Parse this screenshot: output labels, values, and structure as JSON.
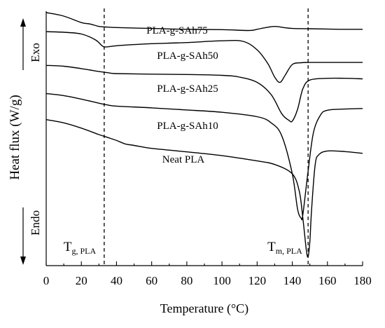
{
  "chart_data": {
    "type": "line",
    "xlabel": "Temperature (°C)",
    "ylabel": "Heat flux (W/g)",
    "xlim": [
      0,
      180
    ],
    "xticks": [
      0,
      20,
      40,
      60,
      80,
      100,
      120,
      140,
      160,
      180
    ],
    "grid": false,
    "legend": "none",
    "direction_labels": {
      "up": "Exo",
      "down": "Endo"
    },
    "reference_lines": [
      {
        "name": "tg",
        "x": 33,
        "main": "T",
        "sub": "g, PLA"
      },
      {
        "name": "tm",
        "x": 149,
        "main": "T",
        "sub": "m, PLA"
      }
    ],
    "series": [
      {
        "name": "PLA-g-SAh75",
        "x": [
          0,
          10,
          20,
          25,
          30,
          34,
          40,
          60,
          80,
          100,
          115,
          120,
          124,
          130,
          135,
          140,
          150,
          160,
          170,
          180
        ],
        "y": [
          18,
          16.8,
          14.6,
          14.1,
          13.3,
          13.1,
          12.9,
          12.6,
          12.3,
          12.2,
          11.9,
          12.3,
          12.8,
          13.3,
          12.9,
          12.6,
          12.5,
          12.4,
          12.3,
          12.3
        ]
      },
      {
        "name": "PLA-g-SAh50",
        "x": [
          0,
          10,
          20,
          28,
          32,
          34,
          40,
          50,
          60,
          80,
          100,
          112,
          120,
          126,
          130,
          133,
          136,
          140,
          145,
          150,
          160,
          170,
          180
        ],
        "y": [
          11.5,
          11.3,
          10.7,
          8.7,
          6.6,
          6.3,
          6.7,
          7.1,
          7.4,
          7.8,
          8.4,
          8.2,
          5.3,
          0.7,
          -4.0,
          -5.8,
          -3.3,
          0.3,
          0.9,
          1.0,
          1.0,
          1.0,
          1.0
        ]
      },
      {
        "name": "PLA-g-SAh25",
        "x": [
          0,
          10,
          20,
          30,
          35,
          40,
          60,
          80,
          100,
          110,
          120,
          128,
          134,
          138,
          140,
          143,
          146,
          150,
          160,
          170,
          180
        ],
        "y": [
          0,
          -0.3,
          -1.1,
          -2.1,
          -2.5,
          -2.8,
          -3.0,
          -3.1,
          -3.4,
          -4.0,
          -5.8,
          -10,
          -16.5,
          -18.7,
          -19.0,
          -15,
          -8,
          -5.0,
          -4.4,
          -4.4,
          -4.6
        ]
      },
      {
        "name": "PLA-g-SAh10",
        "x": [
          0,
          10,
          20,
          30,
          35,
          40,
          60,
          80,
          100,
          120,
          128,
          134,
          140,
          143,
          145,
          146,
          149,
          152,
          156,
          160,
          170,
          180
        ],
        "y": [
          -9.6,
          -10.3,
          -11.5,
          -12.9,
          -13.5,
          -13.9,
          -14.5,
          -15.2,
          -16.0,
          -17.5,
          -19.6,
          -24,
          -37,
          -49,
          -52.1,
          -51,
          -36,
          -23,
          -17,
          -15.3,
          -14.9,
          -14.7
        ]
      },
      {
        "name": "Neat PLA",
        "x": [
          0,
          10,
          20,
          30,
          35,
          40,
          45,
          50,
          60,
          80,
          100,
          120,
          130,
          140,
          144,
          146,
          148,
          149,
          150,
          151,
          153,
          155,
          160,
          170,
          180
        ],
        "y": [
          -18.5,
          -19.6,
          -21.4,
          -23.6,
          -24.6,
          -25.6,
          -26.8,
          -27.3,
          -28.3,
          -29.5,
          -30.8,
          -32.6,
          -33.8,
          -37,
          -43,
          -52,
          -63,
          -65.2,
          -60,
          -49,
          -34,
          -30.5,
          -29.2,
          -29.4,
          -30.0
        ]
      }
    ],
    "series_labels": [
      {
        "text": "PLA-g-SAh75"
      },
      {
        "text": "PLA-g-SAh50"
      },
      {
        "text": "PLA-g-SAh25"
      },
      {
        "text": "PLA-g-SAh10"
      },
      {
        "text": "Neat PLA"
      }
    ]
  }
}
